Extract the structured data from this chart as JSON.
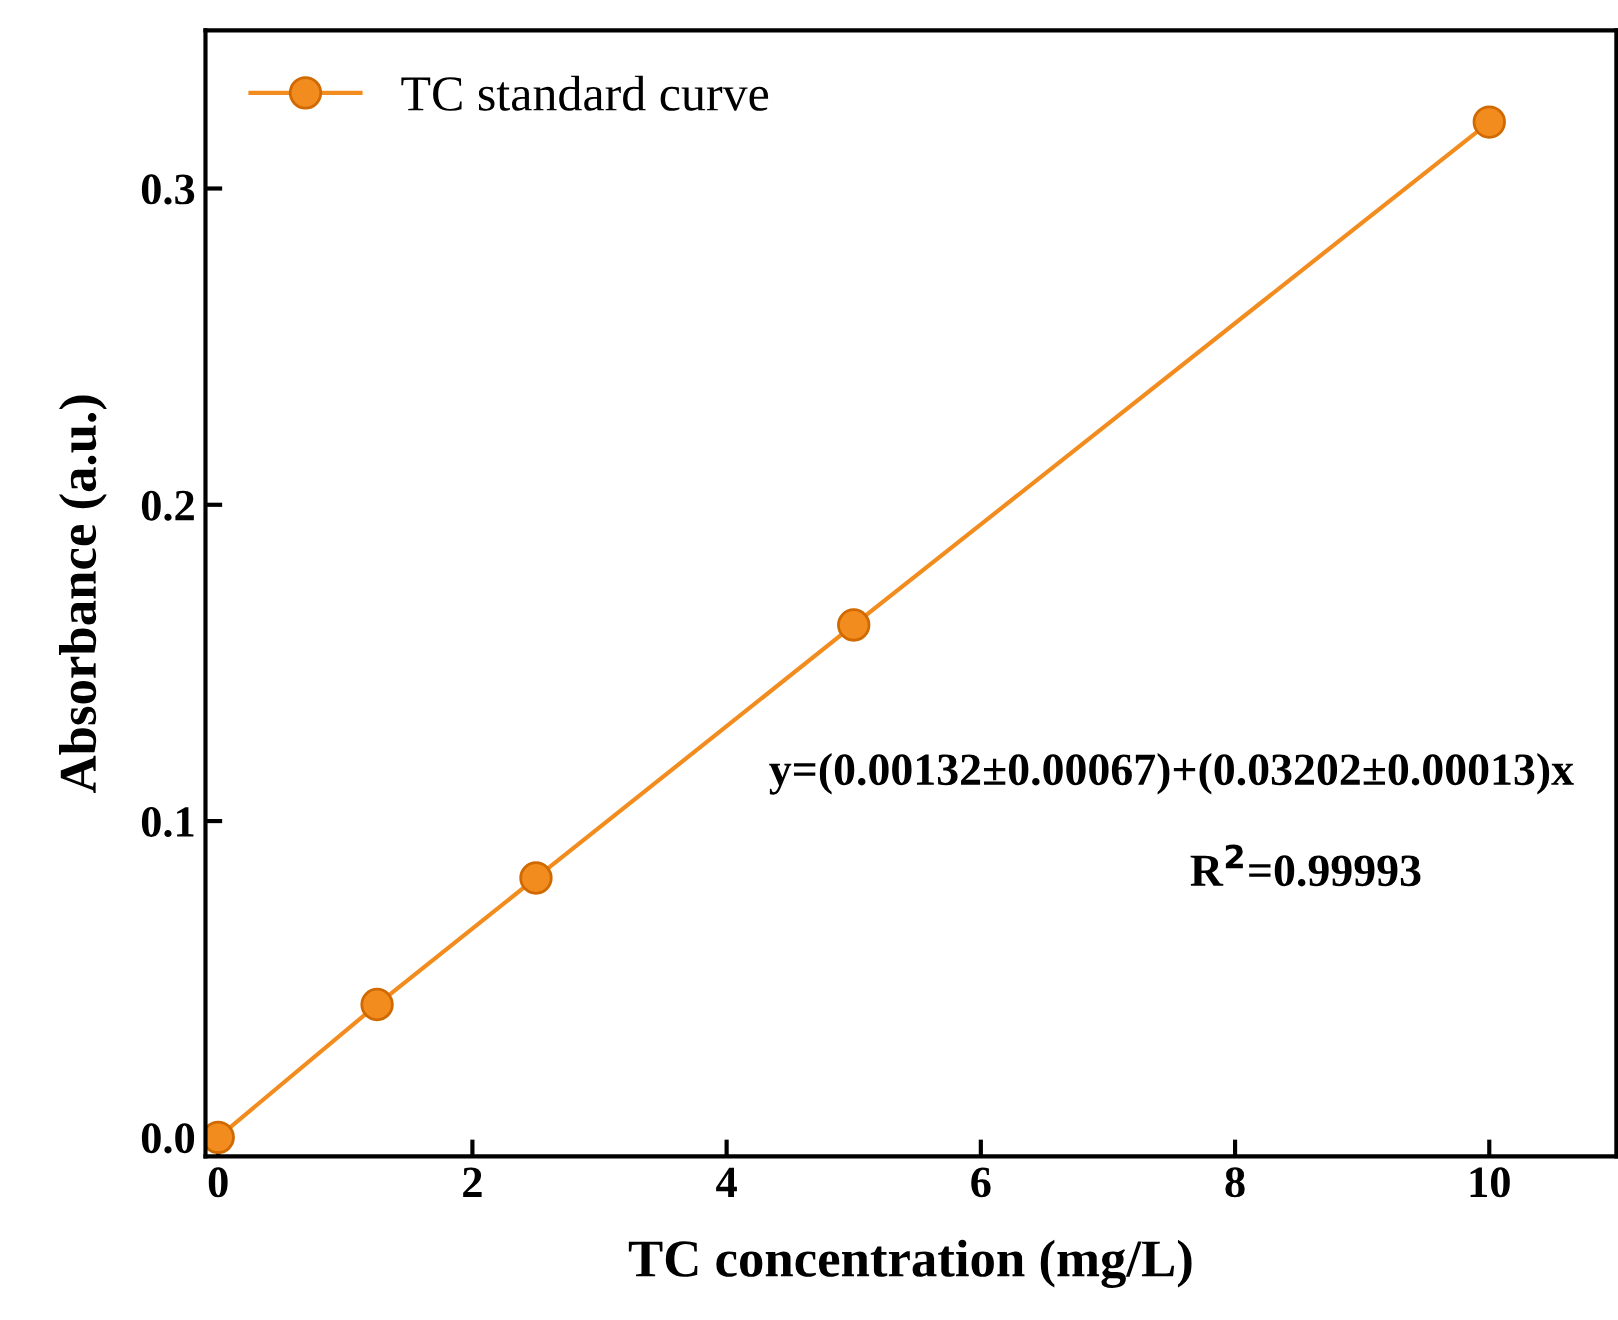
{
  "chart_data": {
    "type": "line",
    "xlabel": "TC concentration (mg/L)",
    "ylabel": "Absorbance (a.u.)",
    "x": [
      0,
      1.25,
      2.5,
      5,
      10
    ],
    "series": [
      {
        "name": "TC standard curve",
        "color": "#f28c1e",
        "values": [
          0.0,
          0.042,
          0.082,
          0.162,
          0.321
        ]
      }
    ],
    "xlim": [
      -0.1,
      11
    ],
    "ylim": [
      -0.006,
      0.35
    ],
    "xticks": [
      0,
      2,
      4,
      6,
      8,
      10
    ],
    "yticks": [
      {
        "value": 0,
        "label": "0.0"
      },
      0.1,
      0.2,
      0.3
    ],
    "annotations": [
      "y=(0.00132±0.00067)+(0.03202±0.00013)x",
      "R$^{2}$=0.99993"
    ],
    "legend": "top left",
    "marker": "circle",
    "line_style": "solid",
    "grid": false
  }
}
